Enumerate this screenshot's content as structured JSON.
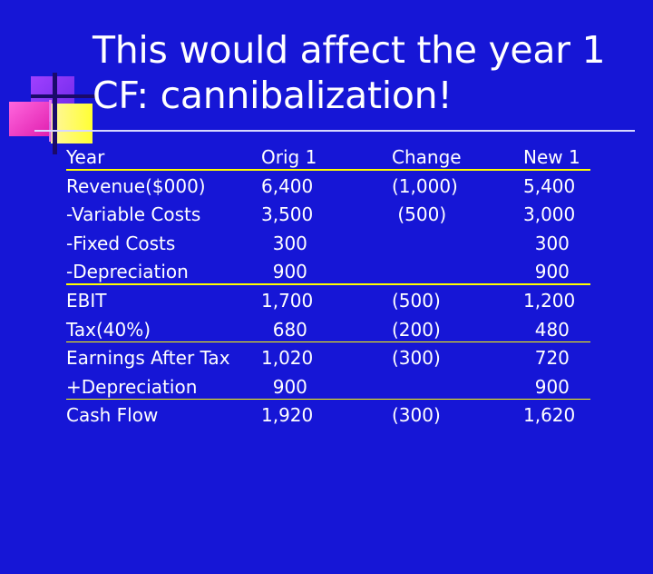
{
  "slide": {
    "title_line1": "This would affect the year 1",
    "title_line2": "CF: cannibalization!"
  },
  "colors": {
    "background": "#1616d6",
    "text": "#ffffff",
    "underline": "#ffff00",
    "decoration_magenta": "#ff33cc",
    "decoration_purple": "#7b2cff",
    "decoration_yellow": "#ffff33"
  },
  "table": {
    "rows": [
      {
        "label": "Year",
        "orig": "Orig 1",
        "change": "Change",
        "new": "New 1",
        "underlined": true
      },
      {
        "label": "Revenue($000)",
        "orig": "6,400",
        "change": "(1,000)",
        "new": "5,400",
        "underlined": false
      },
      {
        "label": "-Variable Costs",
        "orig": "3,500",
        "change": " (500)",
        "new": "3,000",
        "underlined": false
      },
      {
        "label": "-Fixed Costs",
        "orig": "  300",
        "change": "",
        "new": "  300",
        "underlined": false
      },
      {
        "label": "-Depreciation",
        "orig": "  900",
        "change": "",
        "new": "  900",
        "underlined": true
      },
      {
        "label": "EBIT",
        "orig": "1,700",
        "change": "(500)",
        "new": "1,200",
        "underlined": false
      },
      {
        "label": "Tax(40%)",
        "orig": "  680",
        "change": "(200)",
        "new": "  480",
        "underlined": true
      },
      {
        "label": "Earnings After Tax",
        "orig": "1,020",
        "change": "(300)",
        "new": "  720",
        "underlined": false
      },
      {
        "label": "+Depreciation",
        "orig": "  900",
        "change": "",
        "new": "  900",
        "underlined": true
      },
      {
        "label": "Cash Flow",
        "orig": "1,920",
        "change": "(300)",
        "new": "1,620",
        "underlined": false
      }
    ]
  }
}
